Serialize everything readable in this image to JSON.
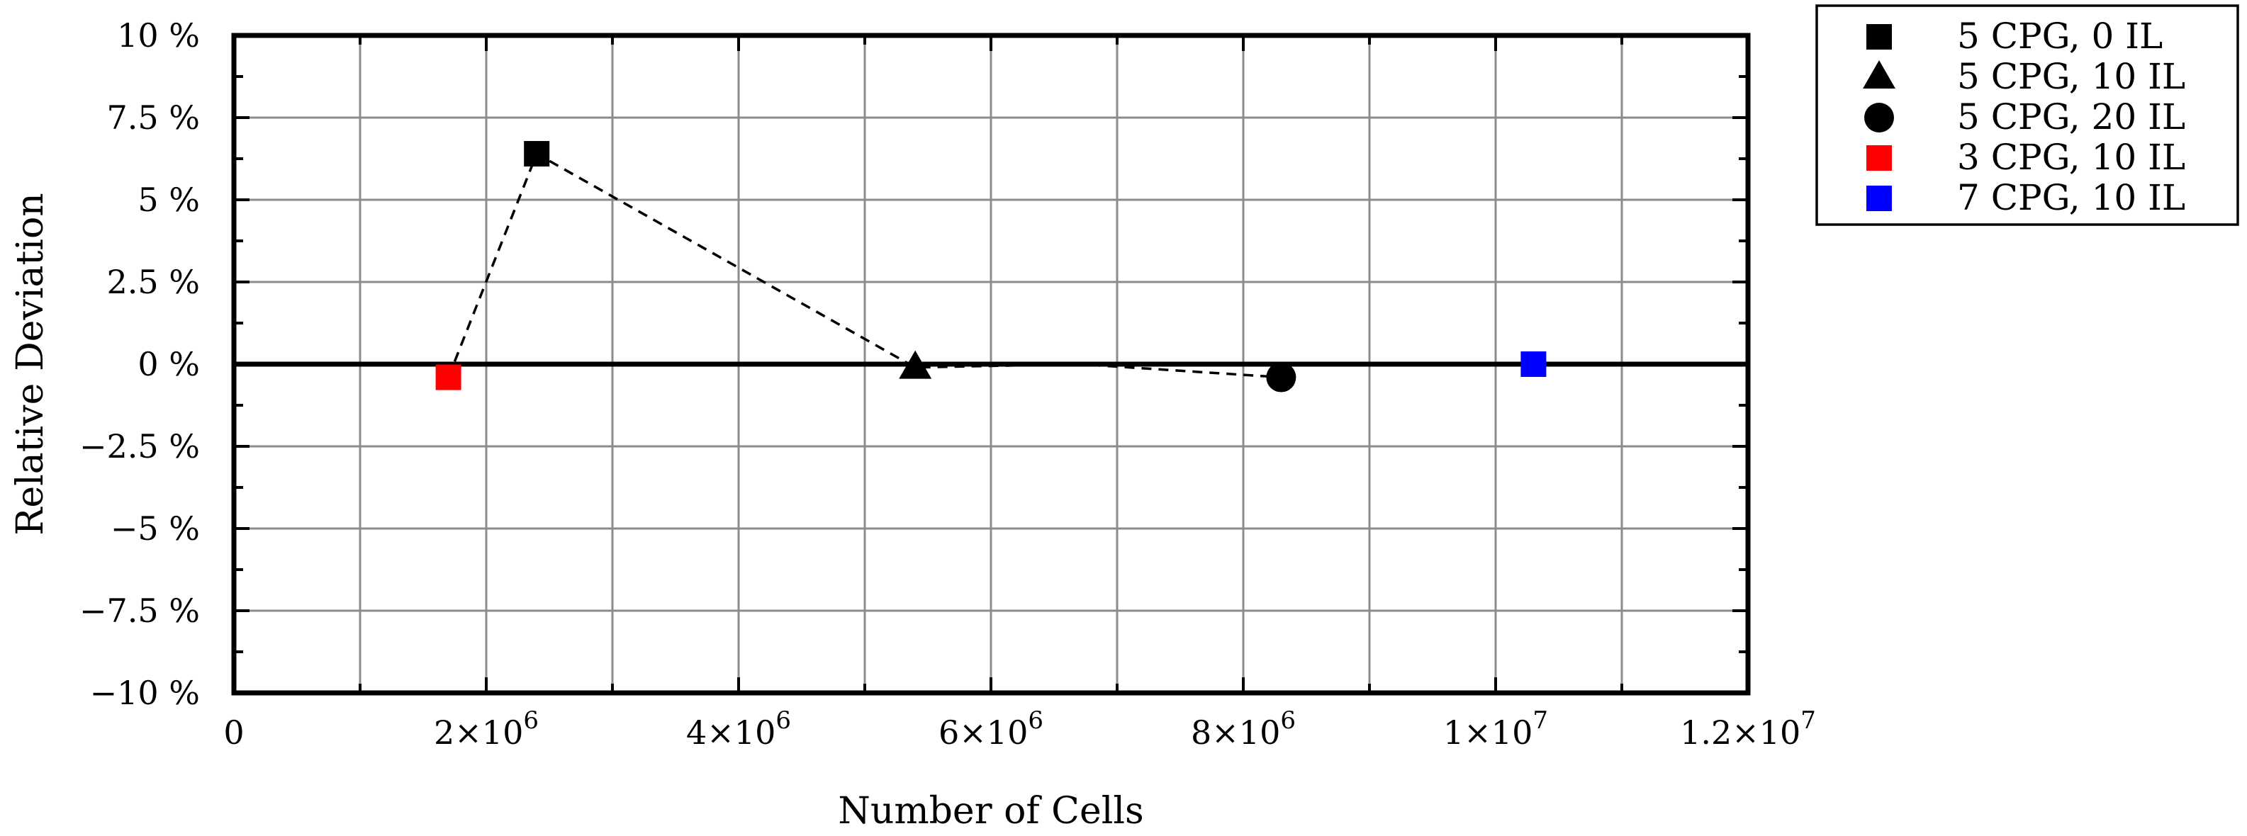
{
  "chart_data": {
    "type": "scatter",
    "title": "",
    "xlabel": "Number of Cells",
    "ylabel": "Relative Deviation",
    "xlim": [
      0,
      12000000
    ],
    "ylim": [
      -10,
      10
    ],
    "grid": true,
    "legend_position": "right",
    "x_ticks": [
      {
        "value": 0,
        "label": "0",
        "exp": ""
      },
      {
        "value": 2000000,
        "label": "2×10",
        "exp": "6"
      },
      {
        "value": 4000000,
        "label": "4×10",
        "exp": "6"
      },
      {
        "value": 6000000,
        "label": "6×10",
        "exp": "6"
      },
      {
        "value": 8000000,
        "label": "8×10",
        "exp": "6"
      },
      {
        "value": 10000000,
        "label": "1×10",
        "exp": "7"
      },
      {
        "value": 12000000,
        "label": "1.2×10",
        "exp": "7"
      }
    ],
    "y_ticks": [
      {
        "value": 10,
        "label": "10 %"
      },
      {
        "value": 7.5,
        "label": "7.5 %"
      },
      {
        "value": 5,
        "label": "5 %"
      },
      {
        "value": 2.5,
        "label": "2.5 %"
      },
      {
        "value": 0,
        "label": "0 %"
      },
      {
        "value": -2.5,
        "label": "−2.5 %"
      },
      {
        "value": -5,
        "label": "−5 %"
      },
      {
        "value": -7.5,
        "label": "−7.5 %"
      },
      {
        "value": -10,
        "label": "−10 %"
      }
    ],
    "series": [
      {
        "name": "5 CPG, 0 IL",
        "marker": "square",
        "color": "#000000",
        "points": [
          {
            "x": 2400000,
            "y": 6.4
          }
        ]
      },
      {
        "name": "5 CPG, 10 IL",
        "marker": "triangle",
        "color": "#000000",
        "points": [
          {
            "x": 5400000,
            "y": -0.1
          }
        ]
      },
      {
        "name": "5 CPG, 20 IL",
        "marker": "circle",
        "color": "#000000",
        "points": [
          {
            "x": 8300000,
            "y": -0.4
          }
        ]
      },
      {
        "name": "3 CPG, 10 IL",
        "marker": "square",
        "color": "#ff0000",
        "points": [
          {
            "x": 1700000,
            "y": -0.4
          }
        ]
      },
      {
        "name": "7 CPG, 10 IL",
        "marker": "square",
        "color": "#0000ff",
        "points": [
          {
            "x": 10300000,
            "y": 0.0
          }
        ]
      }
    ],
    "connecting_line": {
      "style": "dashed",
      "points": [
        {
          "x": 1700000,
          "y": -0.4
        },
        {
          "x": 2400000,
          "y": 6.4
        },
        {
          "x": 5400000,
          "y": -0.1
        },
        {
          "x": 6700000,
          "y": 0.0
        },
        {
          "x": 8300000,
          "y": -0.4
        }
      ]
    }
  }
}
